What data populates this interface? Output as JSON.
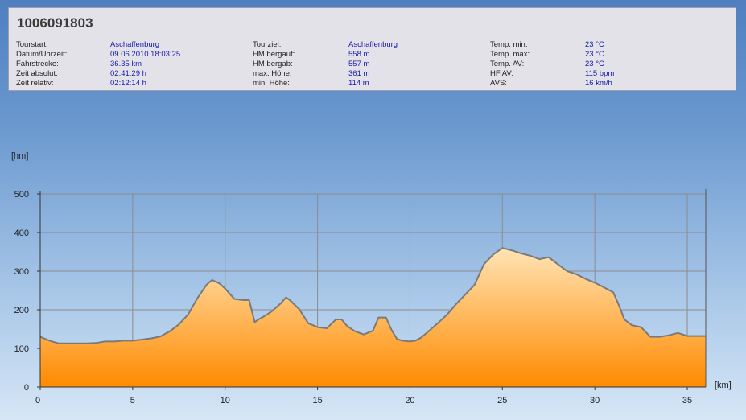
{
  "title": "1006091803",
  "info": {
    "col1": [
      {
        "label": "Tourstart:",
        "value": "Aschaffenburg"
      },
      {
        "label": "Datum/Uhrzeit:",
        "value": "09.06.2010 18:03:25"
      },
      {
        "label": "Fahrstrecke:",
        "value": "36.35 km"
      },
      {
        "label": "Zeit absolut:",
        "value": "02:41:29 h"
      },
      {
        "label": "Zeit relativ:",
        "value": "02:12:14 h"
      }
    ],
    "col2": [
      {
        "label": "Tourziel:",
        "value": "Aschaffenburg"
      },
      {
        "label": "HM bergauf:",
        "value": "558 m"
      },
      {
        "label": "HM bergab:",
        "value": "557 m"
      },
      {
        "label": "max. Höhe:",
        "value": "361 m"
      },
      {
        "label": "min. Höhe:",
        "value": "114 m"
      }
    ],
    "col3": [
      {
        "label": "Temp. min:",
        "value": "23 °C"
      },
      {
        "label": "Temp. max:",
        "value": "23 °C"
      },
      {
        "label": "Temp. AV:",
        "value": "23 °C"
      },
      {
        "label": "HF AV:",
        "value": "115 bpm"
      },
      {
        "label": "AVS:",
        "value": "16 km/h"
      }
    ]
  },
  "chart_data": {
    "type": "area",
    "ylabel": "[hm]",
    "xlabel": "[km]",
    "xlim": [
      0,
      36
    ],
    "ylim": [
      0,
      500
    ],
    "xticks": [
      0,
      5,
      10,
      15,
      20,
      25,
      30,
      35
    ],
    "yticks": [
      0,
      100,
      200,
      300,
      400,
      500
    ],
    "grid": true,
    "colors": {
      "fill_top": "#ffe4b5",
      "fill_bottom": "#ff8a00",
      "line": "#7a7a7a",
      "grid": "#8c8c8c"
    },
    "x": [
      0,
      0.5,
      1,
      1.5,
      2,
      2.5,
      3,
      3.5,
      4,
      4.5,
      5,
      5.5,
      6,
      6.5,
      7,
      7.5,
      8,
      8.5,
      9,
      9.3,
      9.7,
      10,
      10.5,
      11,
      11.3,
      11.6,
      11.8,
      12,
      12.5,
      13,
      13.3,
      13.5,
      14,
      14.5,
      15,
      15.5,
      16,
      16.3,
      16.6,
      17,
      17.5,
      18,
      18.3,
      18.7,
      19,
      19.3,
      19.6,
      20,
      20.3,
      20.6,
      21,
      21.5,
      22,
      22.5,
      23,
      23.5,
      24,
      24.5,
      25,
      25.5,
      26,
      26.5,
      27,
      27.5,
      28,
      28.5,
      29,
      29.5,
      30,
      30.5,
      31,
      31.3,
      31.6,
      32,
      32.5,
      33,
      33.5,
      34,
      34.5,
      35,
      35.5,
      36
    ],
    "values": [
      130,
      120,
      113,
      113,
      113,
      113,
      114,
      118,
      118,
      120,
      120,
      123,
      126,
      131,
      144,
      162,
      188,
      230,
      265,
      277,
      268,
      255,
      228,
      225,
      225,
      168,
      175,
      180,
      195,
      216,
      232,
      225,
      202,
      165,
      155,
      152,
      175,
      175,
      158,
      145,
      136,
      146,
      180,
      180,
      148,
      124,
      120,
      118,
      120,
      128,
      144,
      165,
      187,
      215,
      240,
      265,
      318,
      343,
      360,
      354,
      346,
      340,
      331,
      336,
      318,
      300,
      292,
      280,
      270,
      258,
      245,
      212,
      175,
      160,
      155,
      130,
      130,
      134,
      140,
      132,
      132,
      132
    ]
  }
}
